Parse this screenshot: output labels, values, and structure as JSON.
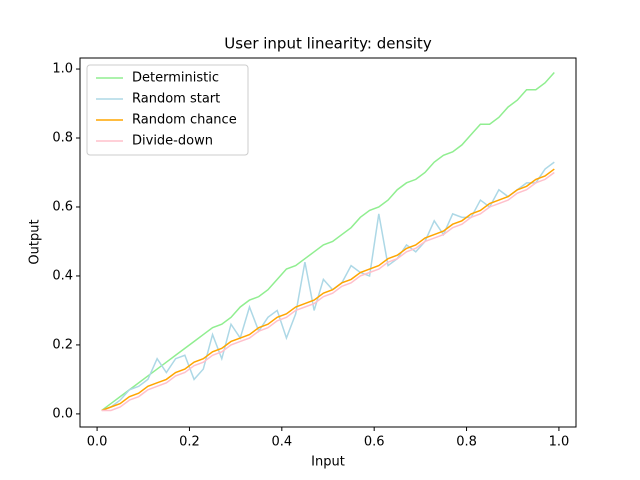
{
  "chart_data": {
    "type": "line",
    "title": "User input linearity: density",
    "xlabel": "Input",
    "ylabel": "Output",
    "x": [
      0.01,
      0.03,
      0.05,
      0.07,
      0.09,
      0.11,
      0.13,
      0.15,
      0.17,
      0.19,
      0.21,
      0.23,
      0.25,
      0.27,
      0.29,
      0.31,
      0.33,
      0.35,
      0.37,
      0.39,
      0.41,
      0.43,
      0.45,
      0.47,
      0.49,
      0.51,
      0.53,
      0.55,
      0.57,
      0.59,
      0.61,
      0.63,
      0.65,
      0.67,
      0.69,
      0.71,
      0.73,
      0.75,
      0.77,
      0.79,
      0.81,
      0.83,
      0.85,
      0.87,
      0.89,
      0.91,
      0.93,
      0.95,
      0.97,
      0.99
    ],
    "series": [
      {
        "name": "Deterministic",
        "color": "#90ee90",
        "values": [
          0.01,
          0.03,
          0.05,
          0.07,
          0.09,
          0.11,
          0.13,
          0.15,
          0.17,
          0.19,
          0.21,
          0.23,
          0.25,
          0.26,
          0.28,
          0.31,
          0.33,
          0.34,
          0.36,
          0.39,
          0.42,
          0.43,
          0.45,
          0.47,
          0.49,
          0.5,
          0.52,
          0.54,
          0.57,
          0.59,
          0.6,
          0.62,
          0.65,
          0.67,
          0.68,
          0.7,
          0.73,
          0.75,
          0.76,
          0.78,
          0.81,
          0.84,
          0.84,
          0.86,
          0.89,
          0.91,
          0.94,
          0.94,
          0.96,
          0.99
        ]
      },
      {
        "name": "Random start",
        "color": "#add8e6",
        "values": [
          0.01,
          0.02,
          0.04,
          0.07,
          0.08,
          0.1,
          0.16,
          0.12,
          0.16,
          0.17,
          0.1,
          0.13,
          0.23,
          0.16,
          0.26,
          0.22,
          0.31,
          0.24,
          0.28,
          0.3,
          0.22,
          0.29,
          0.44,
          0.3,
          0.39,
          0.36,
          0.38,
          0.43,
          0.41,
          0.4,
          0.58,
          0.43,
          0.45,
          0.49,
          0.47,
          0.5,
          0.56,
          0.52,
          0.58,
          0.57,
          0.57,
          0.62,
          0.6,
          0.65,
          0.63,
          0.65,
          0.67,
          0.67,
          0.71,
          0.73
        ]
      },
      {
        "name": "Random chance",
        "color": "#ffa500",
        "values": [
          0.01,
          0.02,
          0.03,
          0.05,
          0.06,
          0.08,
          0.09,
          0.1,
          0.12,
          0.13,
          0.15,
          0.16,
          0.18,
          0.19,
          0.21,
          0.22,
          0.23,
          0.25,
          0.26,
          0.28,
          0.29,
          0.31,
          0.32,
          0.33,
          0.35,
          0.36,
          0.38,
          0.39,
          0.41,
          0.42,
          0.43,
          0.45,
          0.46,
          0.48,
          0.49,
          0.51,
          0.52,
          0.53,
          0.55,
          0.56,
          0.58,
          0.59,
          0.61,
          0.62,
          0.63,
          0.65,
          0.66,
          0.68,
          0.69,
          0.71
        ]
      },
      {
        "name": "Divide-down",
        "color": "#ffc0cb",
        "values": [
          0.01,
          0.01,
          0.02,
          0.04,
          0.05,
          0.07,
          0.08,
          0.09,
          0.11,
          0.12,
          0.14,
          0.15,
          0.17,
          0.18,
          0.2,
          0.21,
          0.22,
          0.24,
          0.25,
          0.27,
          0.28,
          0.3,
          0.31,
          0.32,
          0.34,
          0.35,
          0.37,
          0.38,
          0.4,
          0.41,
          0.42,
          0.44,
          0.45,
          0.47,
          0.48,
          0.5,
          0.51,
          0.52,
          0.54,
          0.55,
          0.57,
          0.58,
          0.6,
          0.61,
          0.62,
          0.64,
          0.65,
          0.67,
          0.68,
          0.7
        ]
      }
    ],
    "xlim": [
      -0.037,
      1.037
    ],
    "ylim": [
      -0.038,
      1.032
    ],
    "xticks": [
      {
        "value": 0,
        "label": "0.0"
      },
      0.2,
      0.4,
      0.6,
      0.8,
      {
        "value": 1,
        "label": "1.0"
      }
    ],
    "yticks": [
      {
        "value": 0,
        "label": "0.0"
      },
      0.2,
      0.4,
      0.6,
      0.8,
      {
        "value": 1,
        "label": "1.0"
      }
    ],
    "legend": "upper-left"
  }
}
